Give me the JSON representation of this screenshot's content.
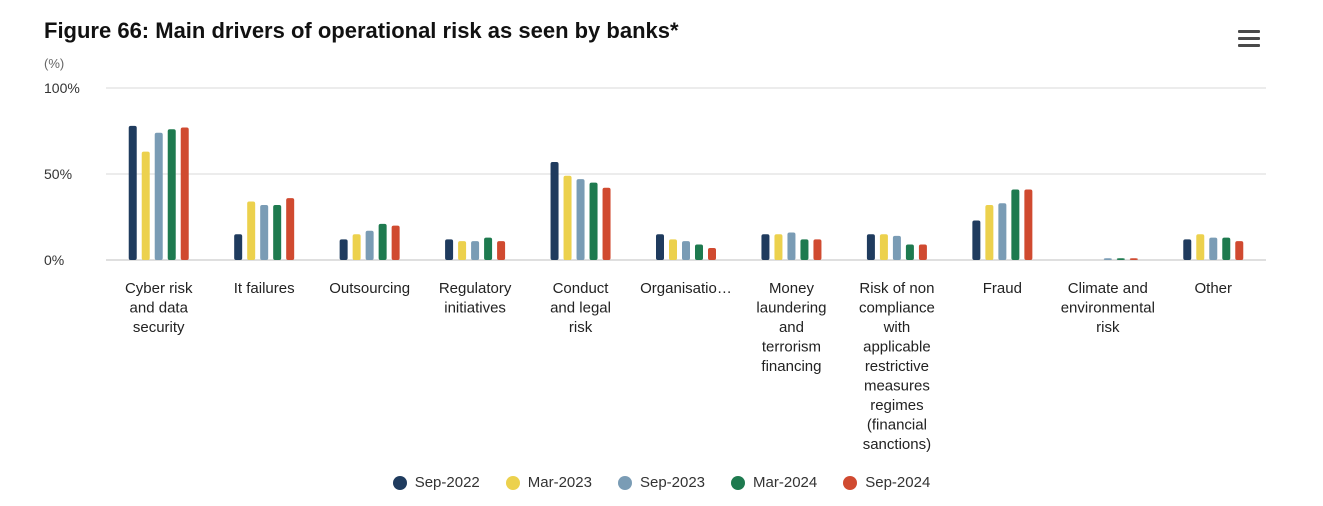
{
  "header": {
    "menu_icon": "hamburger-menu-icon"
  },
  "chart_data": {
    "type": "bar",
    "title": "Figure 66: Main drivers of operational risk as seen by banks*",
    "ylabel": "(%)",
    "ylim": [
      0,
      100
    ],
    "yticks": [
      {
        "value": 0,
        "label": "0%"
      },
      {
        "value": 50,
        "label": "50%"
      },
      {
        "value": 100,
        "label": "100%"
      }
    ],
    "grid": true,
    "legend_position": "bottom",
    "categories": [
      "Cyber risk and data security",
      "It failures",
      "Outsourcing",
      "Regulatory initiatives",
      "Conduct and legal risk",
      "Organisatio…",
      "Money laundering and terrorism financing",
      "Risk of non compliance with applicable restrictive measures regimes (financial sanctions)",
      "Fraud",
      "Climate and environmental risk",
      "Other"
    ],
    "category_lines": [
      [
        "Cyber risk",
        "and data",
        "security"
      ],
      [
        "It failures"
      ],
      [
        "Outsourcing"
      ],
      [
        "Regulatory",
        "initiatives"
      ],
      [
        "Conduct",
        "and legal",
        "risk"
      ],
      [
        "Organisatio…"
      ],
      [
        "Money",
        "laundering",
        "and",
        "terrorism",
        "financing"
      ],
      [
        "Risk of non",
        "compliance",
        "with",
        "applicable",
        "restrictive",
        "measures",
        "regimes",
        "(financial",
        "sanctions)"
      ],
      [
        "Fraud"
      ],
      [
        "Climate and",
        "environmental",
        "risk"
      ],
      [
        "Other"
      ]
    ],
    "series": [
      {
        "name": "Sep-2022",
        "color": "#1f3b5e",
        "values": [
          78,
          15,
          12,
          12,
          57,
          15,
          15,
          15,
          23,
          0,
          12
        ]
      },
      {
        "name": "Mar-2023",
        "color": "#ecd14d",
        "values": [
          63,
          34,
          15,
          11,
          49,
          12,
          15,
          15,
          32,
          0,
          15
        ]
      },
      {
        "name": "Sep-2023",
        "color": "#7a9cb5",
        "values": [
          74,
          32,
          17,
          11,
          47,
          11,
          16,
          14,
          33,
          1,
          13
        ]
      },
      {
        "name": "Mar-2024",
        "color": "#1e7a4f",
        "values": [
          76,
          32,
          21,
          13,
          45,
          9,
          12,
          9,
          41,
          1,
          13
        ]
      },
      {
        "name": "Sep-2024",
        "color": "#d04a30",
        "values": [
          77,
          36,
          20,
          11,
          42,
          7,
          12,
          9,
          41,
          1,
          11
        ]
      }
    ]
  }
}
